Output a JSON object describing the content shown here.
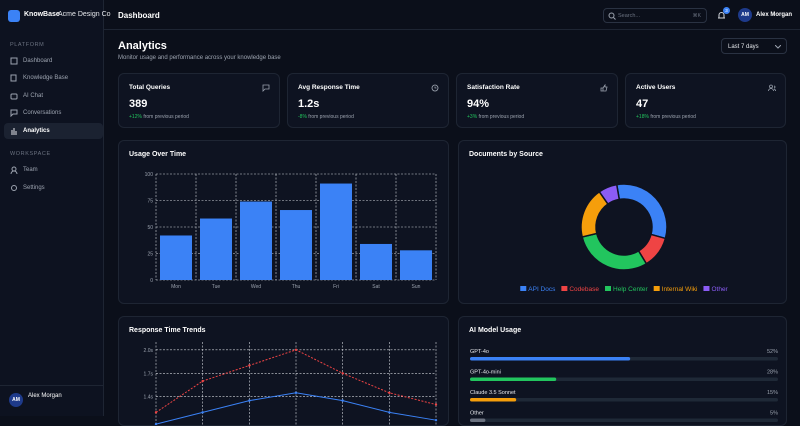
{
  "sidebar": {
    "brand": "KnowBase",
    "org": "Acme Design Co",
    "sections": [
      {
        "title": "PLATFORM",
        "items": [
          "Dashboard",
          "Knowledge Base",
          "AI Chat",
          "Conversations",
          "Analytics"
        ]
      },
      {
        "title": "WORKSPACE",
        "items": [
          "Team",
          "Settings"
        ]
      }
    ],
    "user": {
      "initials": "AM",
      "name": "Alex Morgan"
    }
  },
  "header": {
    "title": "Dashboard",
    "search": "Search...",
    "shortcut": "⌘K",
    "badge": "3",
    "initials": "AM",
    "user": "Alex Morgan"
  },
  "page": {
    "title": "Analytics",
    "subtitle": "Monitor usage and performance across your knowledge base",
    "range": "Last 7 days"
  },
  "stats": [
    {
      "label": "Total Queries",
      "value": "389",
      "change": "+12%",
      "note": "from previous period"
    },
    {
      "label": "Avg Response Time",
      "value": "1.2s",
      "change": "-8%",
      "note": "from previous period"
    },
    {
      "label": "Satisfaction Rate",
      "value": "94%",
      "change": "+3%",
      "note": "from previous period"
    },
    {
      "label": "Active Users",
      "value": "47",
      "change": "+18%",
      "note": "from previous period"
    }
  ],
  "chart_data": [
    {
      "type": "bar",
      "title": "Usage Over Time",
      "categories": [
        "Mon",
        "Tue",
        "Wed",
        "Thu",
        "Fri",
        "Sat",
        "Sun"
      ],
      "values": [
        42,
        58,
        74,
        66,
        91,
        34,
        28
      ],
      "color": "#3b82f6",
      "ylim": [
        0,
        100
      ],
      "yticks": [
        0,
        25,
        50,
        75,
        100
      ],
      "grid": true
    },
    {
      "type": "donut",
      "title": "Documents by Source",
      "categories": [
        "API Docs",
        "Codebase",
        "Help Center",
        "Internal Wiki",
        "Other"
      ],
      "values": [
        32,
        12,
        30,
        19,
        7
      ],
      "colors": [
        "#3b82f6",
        "#ef4444",
        "#22c55e",
        "#f59e0b",
        "#8b5cf6"
      ]
    },
    {
      "type": "line",
      "title": "Response Time Trends",
      "categories": [
        null,
        null,
        null,
        null,
        null,
        null,
        null
      ],
      "series": [
        {
          "color": "#ef4444",
          "dashed": true,
          "values": [
            1.2,
            1.6,
            1.8,
            2.0,
            1.7,
            1.45,
            1.3
          ]
        },
        {
          "color": "#3b82f6",
          "values": [
            1.05,
            1.2,
            1.35,
            1.45,
            1.35,
            1.2,
            1.1
          ]
        }
      ],
      "ylim": [
        1.0,
        2.1
      ],
      "yticks": [
        {
          "value": 1.4,
          "label": "1.4s"
        },
        {
          "value": 1.7,
          "label": "1.7s"
        },
        {
          "value": 2.0,
          "label": "2.0s"
        }
      ],
      "grid": true
    },
    {
      "type": "hbar",
      "title": "AI Model Usage",
      "categories": [
        "GPT-4o",
        "GPT-4o-mini",
        "Claude 3.5 Sonnet",
        "Other"
      ],
      "values": [
        52,
        28,
        15,
        5
      ],
      "value_labels": [
        "52%",
        "28%",
        "15%",
        "5%"
      ],
      "colors": [
        "#3b82f6",
        "#22c55e",
        "#f59e0b",
        "#6b7280"
      ],
      "xlim": [
        0,
        100
      ]
    }
  ]
}
